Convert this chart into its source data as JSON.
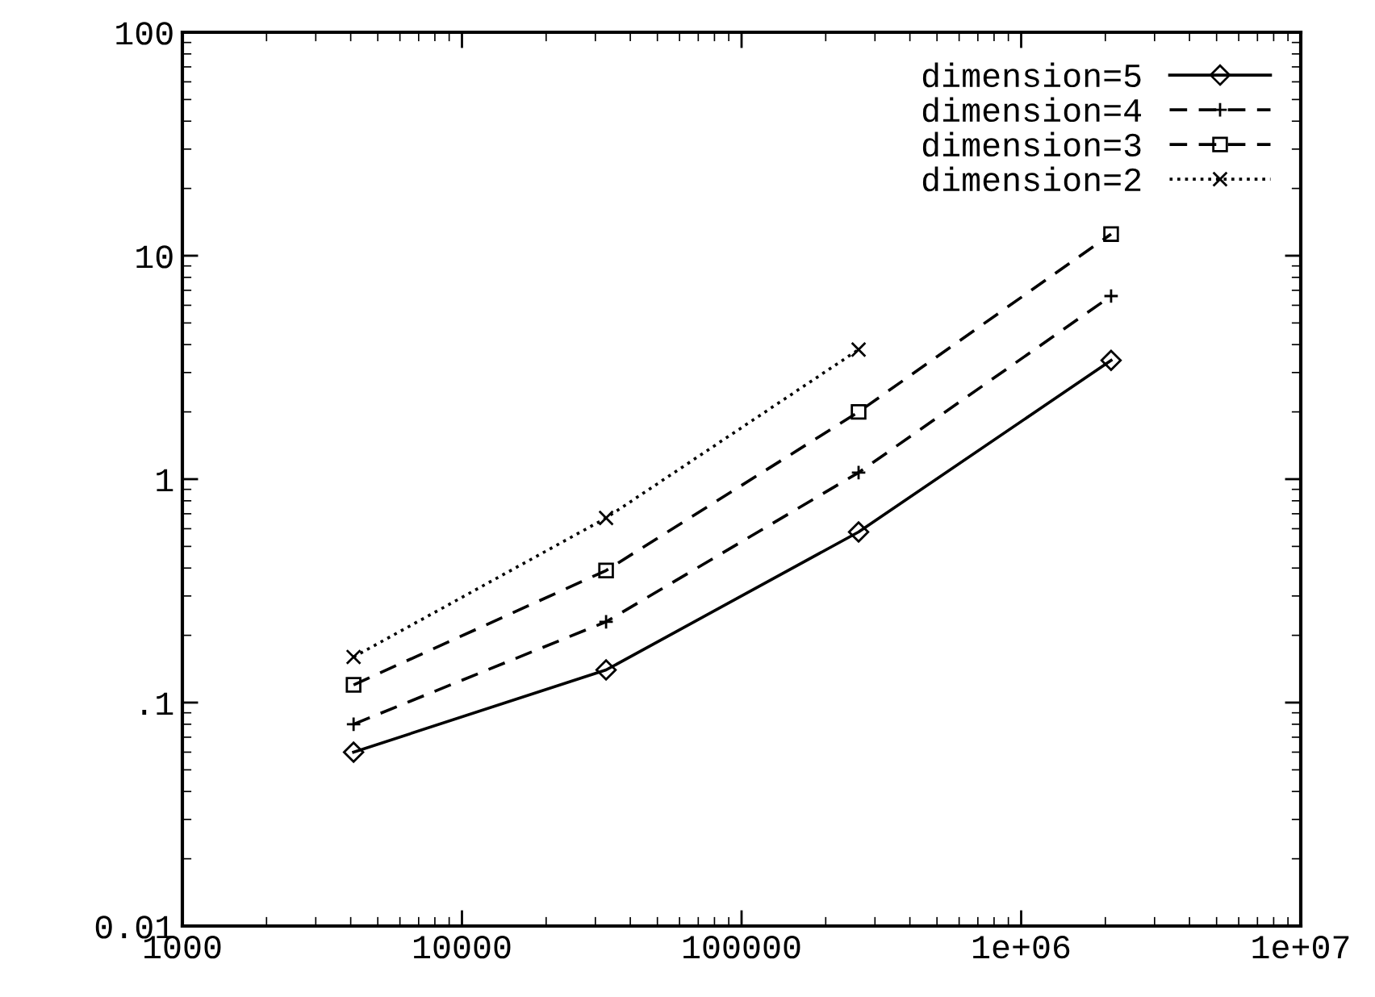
{
  "chart_data": {
    "type": "line",
    "x": [
      4096,
      32768,
      262144,
      2097152
    ],
    "series": [
      {
        "name": "dimension=5",
        "color": "#000000",
        "marker": "diamond",
        "line_style": "solid",
        "values": [
          0.06,
          0.14,
          0.58,
          3.4
        ]
      },
      {
        "name": "dimension=4",
        "color": "#000000",
        "marker": "cross",
        "line_style": "dashed",
        "values": [
          0.08,
          0.23,
          1.07,
          6.6
        ]
      },
      {
        "name": "dimension=3",
        "color": "#000000",
        "marker": "square",
        "line_style": "dashed",
        "values": [
          0.12,
          0.39,
          2.0,
          12.5
        ]
      },
      {
        "name": "dimension=2",
        "color": "#000000",
        "marker": "x",
        "line_style": "dotted",
        "values": [
          0.16,
          0.67,
          3.8,
          null
        ]
      }
    ],
    "log": "xy",
    "xlim": [
      1000,
      10000000
    ],
    "xticks": [
      1000,
      10000,
      100000,
      {
        "value": 1000000,
        "label": "1e+06"
      },
      {
        "value": 10000000,
        "label": "1e+07"
      }
    ],
    "ylim": [
      0.01,
      100
    ],
    "yticks": [
      0.01,
      {
        "value": 0.1,
        "label": ".1"
      },
      1,
      10,
      100
    ],
    "grid": false,
    "legend": "top right"
  }
}
